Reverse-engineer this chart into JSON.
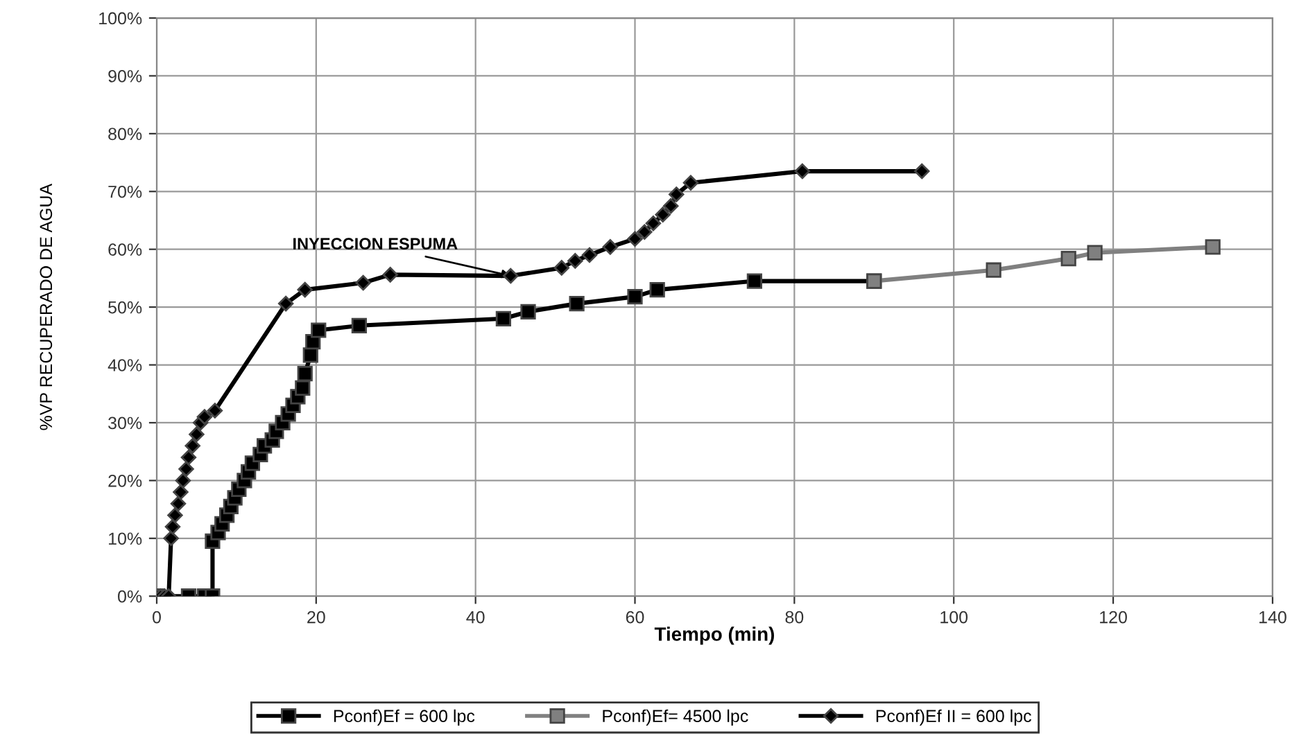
{
  "chart_data": {
    "type": "line",
    "xlabel": "Tiempo (min)",
    "ylabel": "%VP RECUPERADO DE AGUA",
    "xlim": [
      0,
      140
    ],
    "xticks": [
      0,
      20,
      40,
      60,
      80,
      100,
      120,
      140
    ],
    "ylim": [
      0,
      100
    ],
    "yticks": [
      {
        "value": 0,
        "label": "0%"
      },
      {
        "value": 10,
        "label": "10%"
      },
      {
        "value": 20,
        "label": "20%"
      },
      {
        "value": 30,
        "label": "30%"
      },
      {
        "value": 40,
        "label": "40%"
      },
      {
        "value": 50,
        "label": "50%"
      },
      {
        "value": 60,
        "label": "60%"
      },
      {
        "value": 70,
        "label": "70%"
      },
      {
        "value": 80,
        "label": "80%"
      },
      {
        "value": 90,
        "label": "90%"
      },
      {
        "value": 100,
        "label": "100%"
      }
    ],
    "grid": true,
    "legend": "bottom",
    "annotations": [
      {
        "text": "INYECCION ESPUMA",
        "x": 44.4,
        "y": 55.4
      }
    ],
    "series": [
      {
        "name": "Pconf)Ef = 600 lpc",
        "color": "#000000",
        "marker": "square",
        "x": [
          0,
          4,
          6,
          7,
          7,
          7.7,
          8.2,
          8.8,
          9.3,
          9.8,
          10.3,
          11,
          11.5,
          12,
          13,
          13.5,
          14.5,
          15,
          15.8,
          16.5,
          17.1,
          17.7,
          18.3,
          18.6,
          19.3,
          19.6,
          20.3,
          25.4,
          43.5,
          46.6,
          52.7,
          60,
          62.8,
          75,
          90
        ],
        "values": [
          0,
          0,
          0,
          0,
          9.5,
          11,
          12.5,
          14,
          15.5,
          17,
          18.5,
          20,
          21.5,
          23,
          24.5,
          26,
          27,
          28.5,
          30,
          31.5,
          33,
          34.5,
          36,
          38.5,
          41.7,
          44,
          46,
          46.8,
          48,
          49.2,
          50.6,
          51.8,
          53,
          54.5,
          54.5
        ]
      },
      {
        "name": "Pconf)Ef= 4500 lpc",
        "color": "#808080",
        "marker": "square",
        "x": [
          90,
          105,
          114.4,
          117.7,
          132.5
        ],
        "values": [
          54.5,
          56.4,
          58.4,
          59.4,
          60.4
        ]
      },
      {
        "name": "Pconf)Ef II = 600 lpc",
        "color": "#000000",
        "marker": "diamond",
        "x": [
          0,
          0.5,
          1,
          1.5,
          1.8,
          2,
          2.3,
          2.7,
          3,
          3.3,
          3.7,
          4,
          4.5,
          5,
          5.5,
          6,
          7.3,
          16.2,
          18.6,
          25.9,
          29.3,
          44.4,
          50.8,
          52.5,
          54.3,
          56.9,
          60,
          61.2,
          62.3,
          63.5,
          64.5,
          65.2,
          67,
          81,
          96
        ],
        "values": [
          0,
          0,
          0,
          0,
          10,
          12,
          14,
          16,
          18,
          20,
          22,
          24,
          26,
          28,
          30,
          31,
          32.1,
          50.6,
          53,
          54.2,
          55.6,
          55.4,
          56.8,
          58,
          59,
          60.4,
          61.8,
          63,
          64.5,
          66,
          67.5,
          69.5,
          71.5,
          73.5,
          73.5
        ]
      }
    ]
  }
}
